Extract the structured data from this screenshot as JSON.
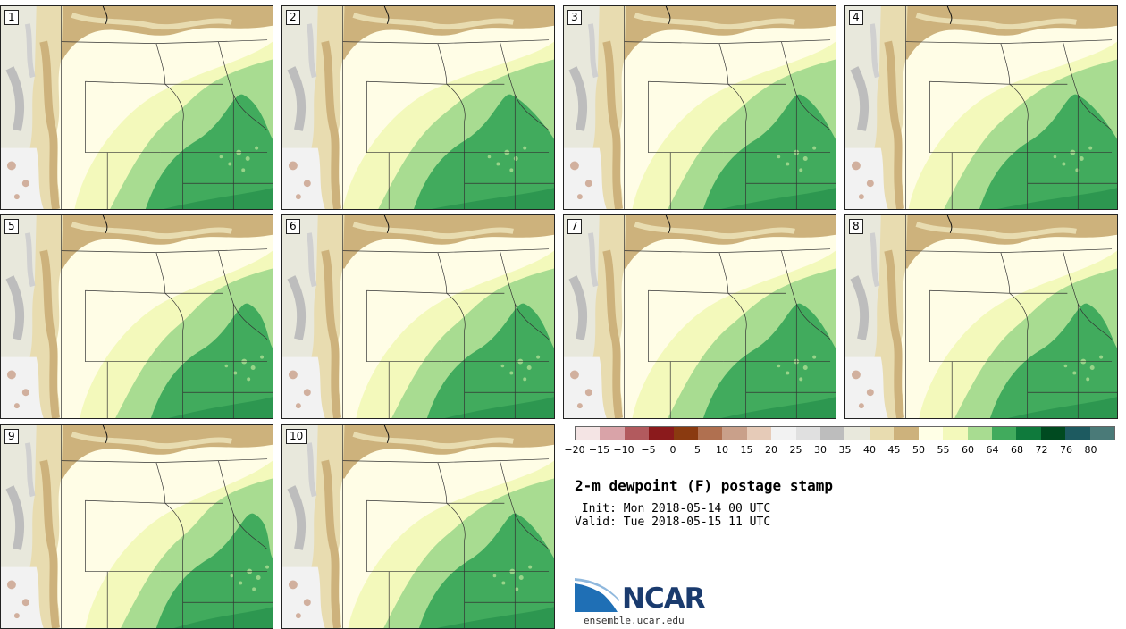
{
  "product": {
    "title": "2-m dewpoint (F) postage stamp",
    "init_line": " Init: Mon 2018-05-14 00 UTC",
    "valid_line": "Valid: Tue 2018-05-15 11 UTC",
    "website": "ensemble.ucar.edu",
    "logo_text": "NCAR"
  },
  "members": [
    {
      "label": "1",
      "green_extent": 0.5
    },
    {
      "label": "2",
      "green_extent": 0.55
    },
    {
      "label": "3",
      "green_extent": 0.52
    },
    {
      "label": "4",
      "green_extent": 0.54
    },
    {
      "label": "5",
      "green_extent": 0.48
    },
    {
      "label": "6",
      "green_extent": 0.5
    },
    {
      "label": "7",
      "green_extent": 0.52
    },
    {
      "label": "8",
      "green_extent": 0.5
    },
    {
      "label": "9",
      "green_extent": 0.46
    },
    {
      "label": "10",
      "green_extent": 0.53
    }
  ],
  "colorbar": {
    "colors": [
      "#f4e4e4",
      "#d9a3a8",
      "#b25a5e",
      "#8b1a1c",
      "#8a3a10",
      "#b07050",
      "#c9a08a",
      "#e6cbb8",
      "#f2f2f2",
      "#e0e0e0",
      "#bdbdbd",
      "#e8e8dc",
      "#e8dcb0",
      "#cdb27c",
      "#ffffe6",
      "#f3f9bb",
      "#a8dc91",
      "#41ab5d",
      "#0f7a3c",
      "#004a20",
      "#1d5a60",
      "#4a7a78"
    ],
    "tick_labels": [
      "−20",
      "−15",
      "−10",
      "−5",
      "0",
      "5",
      "10",
      "15",
      "20",
      "25",
      "30",
      "35",
      "40",
      "45",
      "50",
      "55",
      "60",
      "64",
      "68",
      "72",
      "76",
      "80"
    ]
  }
}
